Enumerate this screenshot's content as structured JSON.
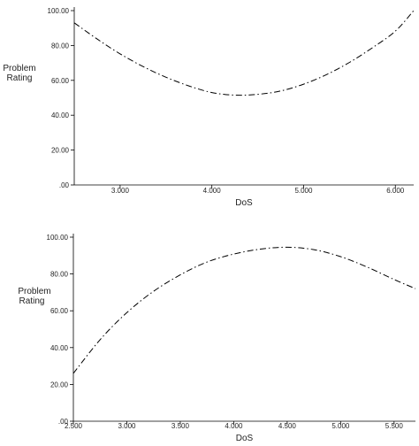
{
  "chart_data": [
    {
      "type": "line",
      "xlabel": "DoS",
      "ylabel": [
        "Problem",
        "Rating"
      ],
      "xlim": [
        2.5,
        6.2
      ],
      "ylim": [
        0,
        100
      ],
      "x_ticks": [
        3.0,
        4.0,
        5.0,
        6.0
      ],
      "x_tick_labels": [
        "3.000",
        "4.000",
        "5.000",
        "6.000"
      ],
      "y_ticks": [
        0,
        20,
        40,
        60,
        80,
        100
      ],
      "y_tick_labels": [
        ".00",
        "20.00",
        "40.00",
        "60.00",
        "80.00",
        "100.00"
      ],
      "line_style": "dash-dot",
      "series": [
        {
          "x": [
            2.5,
            2.75,
            3.0,
            3.25,
            3.5,
            3.75,
            4.0,
            4.25,
            4.5,
            4.75,
            5.0,
            5.25,
            5.5,
            5.75,
            6.0,
            6.2
          ],
          "values": [
            93.0,
            83.7,
            75.2,
            67.9,
            61.8,
            56.8,
            53.0,
            51.5,
            52.0,
            53.9,
            57.8,
            63.3,
            70.3,
            78.7,
            88.2,
            100.0
          ]
        }
      ]
    },
    {
      "type": "line",
      "xlabel": "DoS",
      "ylabel": [
        "Problem",
        "Rating"
      ],
      "xlim": [
        2.5,
        5.7
      ],
      "ylim": [
        0,
        100
      ],
      "x_ticks": [
        2.5,
        3.0,
        3.5,
        4.0,
        4.5,
        5.0,
        5.5
      ],
      "x_tick_labels": [
        "2.500",
        "3.000",
        "3.500",
        "4.000",
        "4.500",
        "5.000",
        "5.500"
      ],
      "y_ticks": [
        0,
        20,
        40,
        60,
        80,
        100
      ],
      "y_tick_labels": [
        ".00",
        "20.00",
        "40.00",
        "60.00",
        "80.00",
        "100.00"
      ],
      "line_style": "dash-dot",
      "series": [
        {
          "x": [
            2.5,
            2.75,
            3.0,
            3.25,
            3.5,
            3.75,
            4.0,
            4.25,
            4.5,
            4.75,
            5.0,
            5.25,
            5.5,
            5.7
          ],
          "values": [
            26.0,
            44.3,
            59.0,
            70.6,
            79.5,
            86.5,
            90.8,
            93.5,
            94.5,
            93.2,
            89.4,
            83.7,
            77.0,
            72.0
          ]
        }
      ]
    }
  ]
}
